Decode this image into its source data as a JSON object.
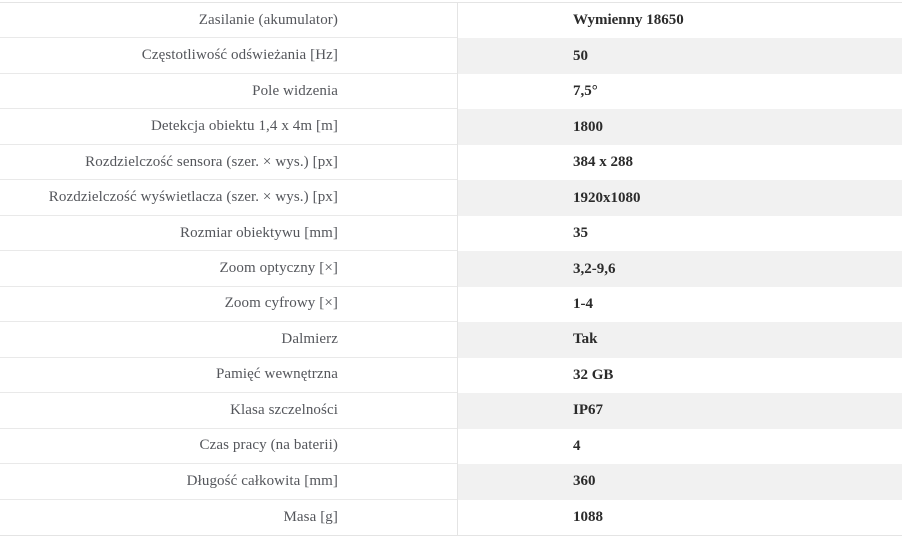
{
  "table": {
    "colors": {
      "alt_row_bg": "#f1f1f1",
      "border": "#e4e4e4",
      "row_line": "#e9e9e9",
      "label_text": "#54565b",
      "value_text": "#2b2b2b"
    },
    "rows": [
      {
        "label": "Zasilanie (akumulator)",
        "value": "Wymienny 18650"
      },
      {
        "label": "Częstotliwość odświeżania [Hz]",
        "value": "50"
      },
      {
        "label": "Pole widzenia",
        "value": "7,5°"
      },
      {
        "label": "Detekcja obiektu 1,4 x 4m [m]",
        "value": "1800"
      },
      {
        "label": "Rozdzielczość sensora (szer. × wys.) [px]",
        "value": "384 x 288"
      },
      {
        "label": "Rozdzielczość wyświetlacza (szer. × wys.) [px]",
        "value": "1920x1080"
      },
      {
        "label": "Rozmiar obiektywu [mm]",
        "value": "35"
      },
      {
        "label": "Zoom optyczny [×]",
        "value": "3,2-9,6"
      },
      {
        "label": "Zoom cyfrowy [×]",
        "value": "1-4"
      },
      {
        "label": "Dalmierz",
        "value": "Tak"
      },
      {
        "label": "Pamięć wewnętrzna",
        "value": "32 GB"
      },
      {
        "label": "Klasa szczelności",
        "value": "IP67"
      },
      {
        "label": "Czas pracy (na baterii)",
        "value": "4"
      },
      {
        "label": "Długość całkowita [mm]",
        "value": "360"
      },
      {
        "label": "Masa [g]",
        "value": "1088"
      }
    ]
  }
}
